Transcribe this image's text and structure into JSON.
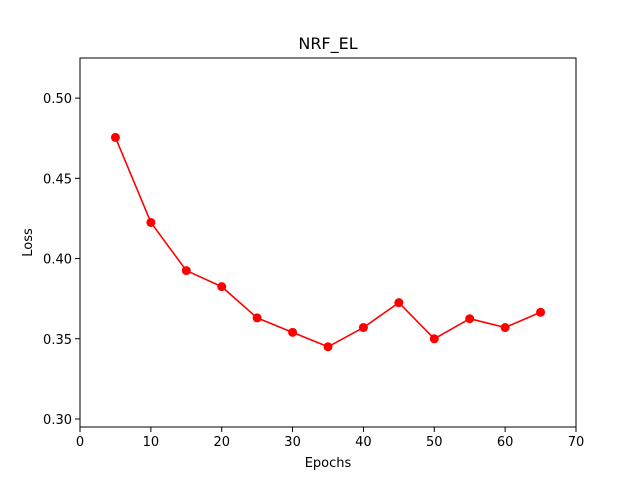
{
  "chart_data": {
    "type": "line",
    "title": "NRF_EL",
    "xlabel": "Epochs",
    "ylabel": "Loss",
    "xlim": [
      0,
      70
    ],
    "ylim": [
      0.295,
      0.525
    ],
    "xticks": [
      0,
      10,
      20,
      30,
      40,
      50,
      60,
      70
    ],
    "xtick_labels": [
      "0",
      "10",
      "20",
      "30",
      "40",
      "50",
      "60",
      "70"
    ],
    "yticks": [
      0.3,
      0.35,
      0.4,
      0.45,
      0.5
    ],
    "ytick_labels": [
      "0.30",
      "0.35",
      "0.40",
      "0.45",
      "0.50"
    ],
    "grid": false,
    "series": [
      {
        "color": "#ff0000",
        "marker": "circle",
        "x": [
          5,
          10,
          15,
          20,
          25,
          30,
          35,
          40,
          45,
          50,
          55,
          60,
          65
        ],
        "y": [
          0.4755,
          0.4225,
          0.3925,
          0.3825,
          0.363,
          0.354,
          0.345,
          0.357,
          0.3725,
          0.35,
          0.3625,
          0.357,
          0.3665
        ]
      }
    ]
  }
}
